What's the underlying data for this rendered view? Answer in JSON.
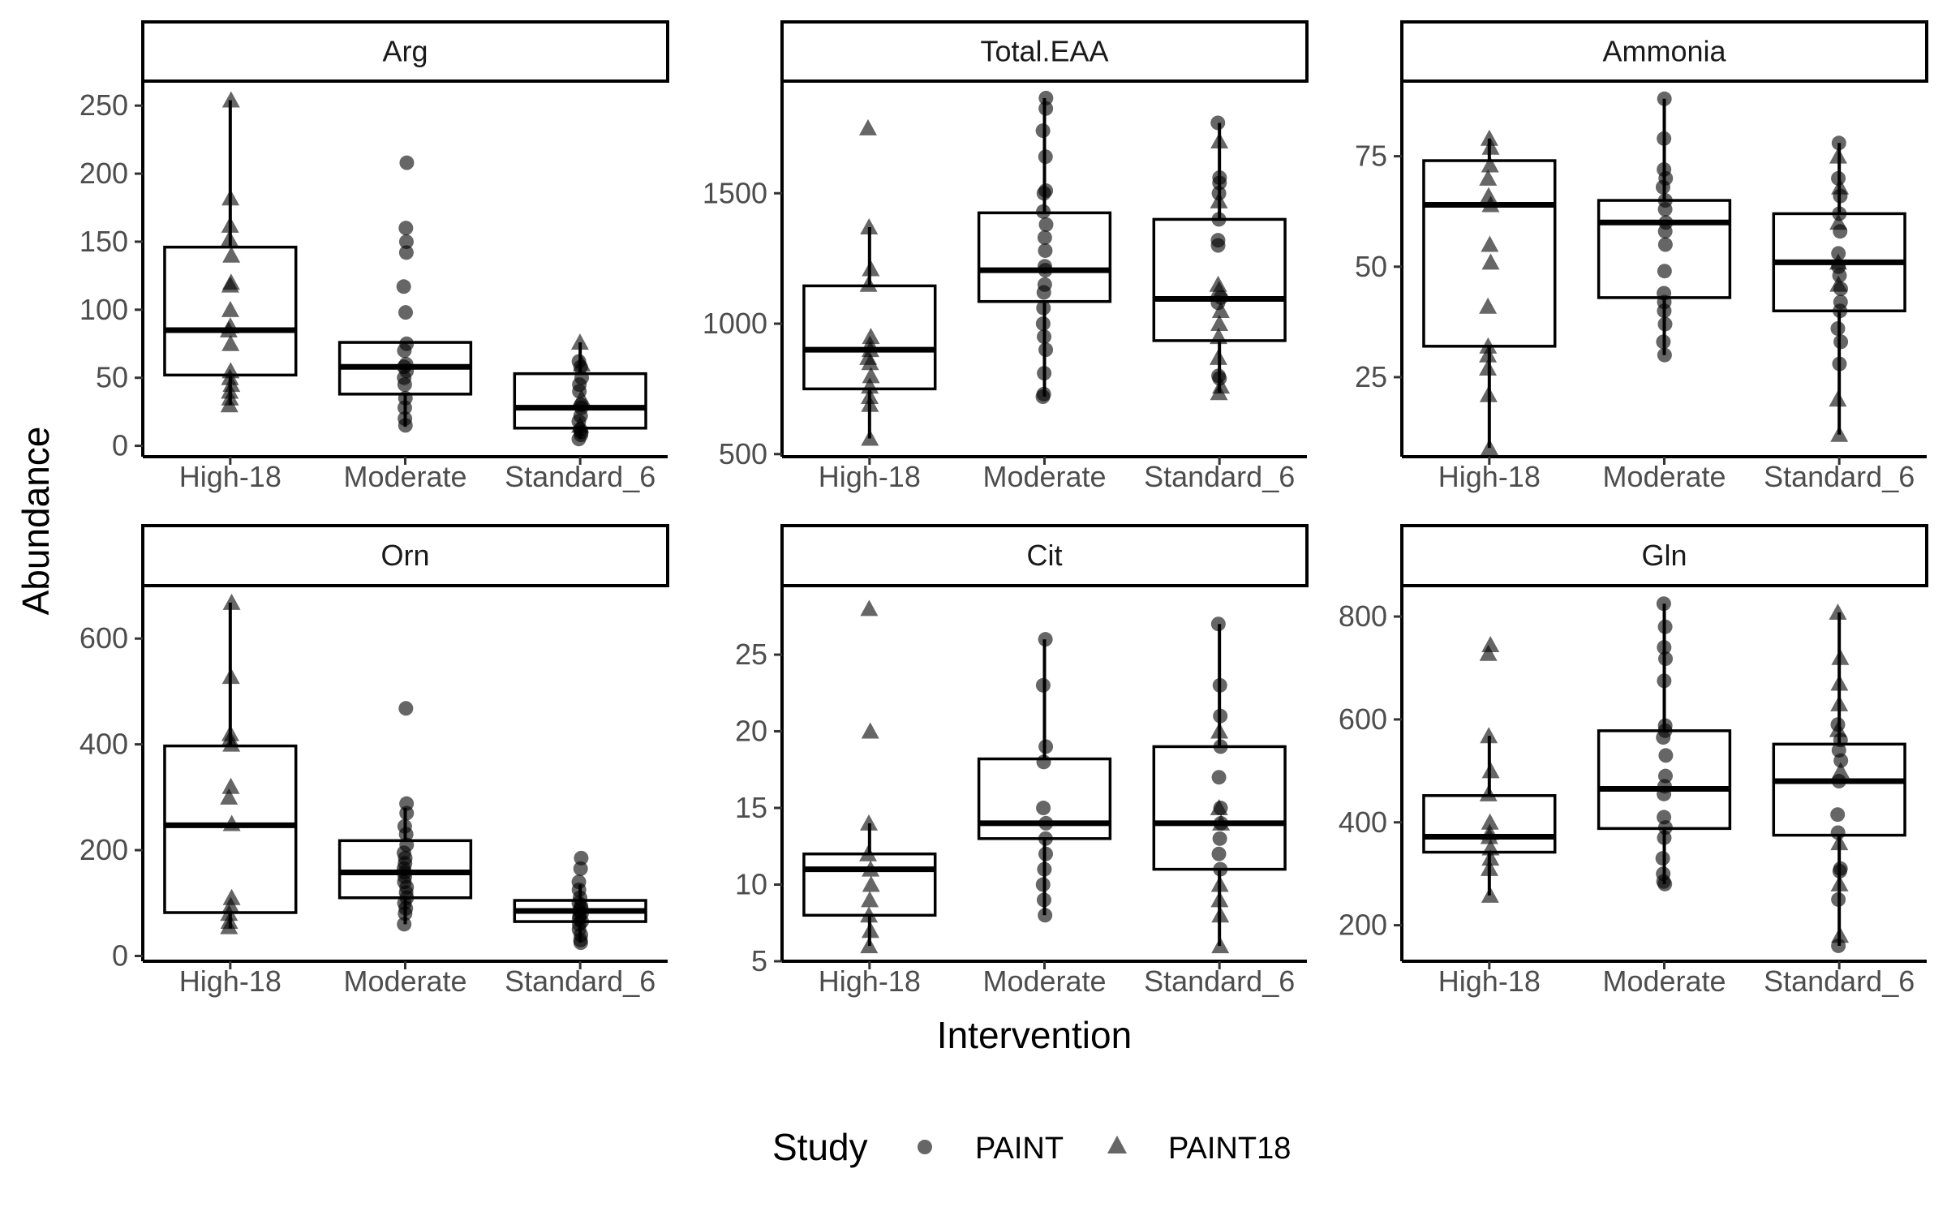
{
  "chart_data": {
    "type": "box",
    "xlabel": "Intervention",
    "ylabel": "Abundance",
    "categories": [
      "High-18",
      "Moderate",
      "Standard_6"
    ],
    "legend": {
      "title": "Study",
      "position": "bottom",
      "entries": [
        {
          "label": "PAINT",
          "shape": "circle"
        },
        {
          "label": "PAINT18",
          "shape": "triangle"
        }
      ]
    },
    "panels": [
      {
        "title": "Arg",
        "ylim": [
          -8,
          268
        ],
        "yticks": [
          0,
          50,
          100,
          150,
          200,
          250
        ],
        "boxes": [
          {
            "category": "High-18",
            "q1": 52,
            "median": 85,
            "q3": 146,
            "whisker_low": 30,
            "whisker_high": 254
          },
          {
            "category": "Moderate",
            "q1": 38,
            "median": 58,
            "q3": 76,
            "whisker_low": 14,
            "whisker_high": 76
          },
          {
            "category": "Standard_6",
            "q1": 13,
            "median": 28,
            "q3": 53,
            "whisker_low": 5,
            "whisker_high": 76
          }
        ],
        "points": [
          {
            "category": "High-18",
            "study": "PAINT18",
            "values": [
              254,
              182,
              162,
              152,
              140,
              120,
              118,
              100,
              88,
              85,
              75,
              55,
              50,
              45,
              40,
              35,
              30
            ]
          },
          {
            "category": "Moderate",
            "study": "PAINT",
            "values": [
              208,
              160,
              150,
              142,
              117,
              98,
              75,
              70,
              60,
              58,
              55,
              50,
              45,
              35,
              28,
              20,
              15
            ]
          },
          {
            "category": "Standard_6",
            "study": "PAINT",
            "values": [
              62,
              58,
              50,
              45,
              40,
              30,
              28,
              22,
              18,
              12,
              10,
              8,
              5
            ]
          },
          {
            "category": "Standard_6",
            "study": "PAINT18",
            "values": [
              76,
              60,
              35,
              15
            ]
          }
        ]
      },
      {
        "title": "Total.EAA",
        "ylim": [
          490,
          1930
        ],
        "yticks": [
          500,
          1000,
          1500
        ],
        "boxes": [
          {
            "category": "High-18",
            "q1": 750,
            "median": 900,
            "q3": 1145,
            "whisker_low": 560,
            "whisker_high": 1370
          },
          {
            "category": "Moderate",
            "q1": 1085,
            "median": 1205,
            "q3": 1425,
            "whisker_low": 720,
            "whisker_high": 1865
          },
          {
            "category": "Standard_6",
            "q1": 935,
            "median": 1095,
            "q3": 1400,
            "whisker_low": 735,
            "whisker_high": 1770
          }
        ],
        "points": [
          {
            "category": "High-18",
            "study": "PAINT18",
            "values": [
              1750,
              1370,
              1210,
              1150,
              950,
              920,
              900,
              870,
              850,
              800,
              760,
              720,
              690,
              560
            ]
          },
          {
            "category": "Moderate",
            "study": "PAINT",
            "values": [
              1865,
              1825,
              1740,
              1640,
              1510,
              1500,
              1430,
              1380,
              1330,
              1280,
              1220,
              1205,
              1150,
              1120,
              1060,
              1000,
              950,
              900,
              810,
              730,
              720
            ]
          },
          {
            "category": "Standard_6",
            "study": "PAINT",
            "values": [
              1770,
              1560,
              1540,
              1500,
              1400,
              1320,
              1300,
              1100,
              1080,
              800,
              790
            ]
          },
          {
            "category": "Standard_6",
            "study": "PAINT18",
            "values": [
              1700,
              1470,
              1150,
              1130,
              1050,
              1000,
              950,
              870,
              760,
              735
            ]
          }
        ]
      },
      {
        "title": "Ammonia",
        "ylim": [
          7,
          92
        ],
        "yticks": [
          25,
          50,
          75
        ],
        "boxes": [
          {
            "category": "High-18",
            "q1": 32,
            "median": 64,
            "q3": 74,
            "whisker_low": 9,
            "whisker_high": 79
          },
          {
            "category": "Moderate",
            "q1": 43,
            "median": 60,
            "q3": 65,
            "whisker_low": 30,
            "whisker_high": 88
          },
          {
            "category": "Standard_6",
            "q1": 40,
            "median": 51,
            "q3": 62,
            "whisker_low": 12,
            "whisker_high": 78
          }
        ],
        "points": [
          {
            "category": "High-18",
            "study": "PAINT18",
            "values": [
              79,
              77,
              73,
              70,
              66,
              64,
              55,
              51,
              41,
              32,
              30,
              27,
              21,
              9
            ]
          },
          {
            "category": "Moderate",
            "study": "PAINT",
            "values": [
              88,
              79,
              72,
              70,
              68,
              65,
              63,
              60,
              58,
              55,
              49,
              44,
              42,
              40,
              37,
              33,
              30
            ]
          },
          {
            "category": "Standard_6",
            "study": "PAINT",
            "values": [
              78,
              70,
              66,
              62,
              58,
              53,
              50,
              48,
              45,
              42,
              40,
              36,
              33,
              28
            ]
          },
          {
            "category": "Standard_6",
            "study": "PAINT18",
            "values": [
              75,
              68,
              60,
              51,
              46,
              20,
              12
            ]
          }
        ]
      },
      {
        "title": "Orn",
        "ylim": [
          -10,
          700
        ],
        "yticks": [
          0,
          200,
          400,
          600
        ],
        "boxes": [
          {
            "category": "High-18",
            "q1": 82,
            "median": 247,
            "q3": 397,
            "whisker_low": 52,
            "whisker_high": 668
          },
          {
            "category": "Moderate",
            "q1": 110,
            "median": 158,
            "q3": 218,
            "whisker_low": 60,
            "whisker_high": 280
          },
          {
            "category": "Standard_6",
            "q1": 65,
            "median": 85,
            "q3": 105,
            "whisker_low": 25,
            "whisker_high": 135
          }
        ],
        "points": [
          {
            "category": "High-18",
            "study": "PAINT18",
            "values": [
              668,
              528,
              420,
              410,
              400,
              320,
              300,
              250,
              110,
              95,
              80,
              65,
              55
            ]
          },
          {
            "category": "Moderate",
            "study": "PAINT",
            "values": [
              468,
              288,
              270,
              245,
              230,
              210,
              195,
              185,
              175,
              165,
              158,
              150,
              140,
              130,
              120,
              110,
              100,
              90,
              80,
              60
            ]
          },
          {
            "category": "Standard_6",
            "study": "PAINT",
            "values": [
              185,
              165,
              140,
              125,
              110,
              100,
              95,
              90,
              85,
              80,
              75,
              70,
              65,
              60,
              50,
              40,
              30,
              25
            ]
          }
        ]
      },
      {
        "title": "Cit",
        "ylim": [
          5,
          29.5
        ],
        "yticks": [
          5,
          10,
          15,
          20,
          25
        ],
        "boxes": [
          {
            "category": "High-18",
            "q1": 8,
            "median": 11,
            "q3": 12,
            "whisker_low": 6,
            "whisker_high": 14
          },
          {
            "category": "Moderate",
            "q1": 13,
            "median": 14,
            "q3": 18.2,
            "whisker_low": 8,
            "whisker_high": 26
          },
          {
            "category": "Standard_6",
            "q1": 11,
            "median": 14,
            "q3": 19,
            "whisker_low": 6,
            "whisker_high": 27
          }
        ],
        "points": [
          {
            "category": "High-18",
            "study": "PAINT18",
            "values": [
              28,
              20,
              14,
              12,
              11,
              10,
              9,
              8,
              7,
              6
            ]
          },
          {
            "category": "Moderate",
            "study": "PAINT",
            "values": [
              26,
              23,
              19,
              18,
              15,
              14,
              13,
              12,
              11,
              10,
              9,
              8
            ]
          },
          {
            "category": "Standard_6",
            "study": "PAINT",
            "values": [
              27,
              23,
              21,
              19,
              17,
              15,
              14,
              13,
              12,
              11
            ]
          },
          {
            "category": "Standard_6",
            "study": "PAINT18",
            "values": [
              20,
              15,
              14,
              10,
              9,
              8,
              6
            ]
          }
        ]
      },
      {
        "title": "Gln",
        "ylim": [
          130,
          860
        ],
        "yticks": [
          200,
          400,
          600,
          800
        ],
        "boxes": [
          {
            "category": "High-18",
            "q1": 342,
            "median": 372,
            "q3": 452,
            "whisker_low": 258,
            "whisker_high": 568
          },
          {
            "category": "Moderate",
            "q1": 388,
            "median": 465,
            "q3": 578,
            "whisker_low": 280,
            "whisker_high": 825
          },
          {
            "category": "Standard_6",
            "q1": 375,
            "median": 480,
            "q3": 552,
            "whisker_low": 160,
            "whisker_high": 808
          }
        ],
        "points": [
          {
            "category": "High-18",
            "study": "PAINT18",
            "values": [
              745,
              728,
              568,
              500,
              455,
              400,
              380,
              372,
              350,
              330,
              310,
              258
            ]
          },
          {
            "category": "Moderate",
            "study": "PAINT",
            "values": [
              825,
              780,
              740,
              718,
              675,
              588,
              578,
              565,
              530,
              490,
              470,
              455,
              410,
              390,
              370,
              330,
              300,
              285,
              280
            ]
          },
          {
            "category": "Standard_6",
            "study": "PAINT",
            "values": [
              590,
              560,
              540,
              520,
              480,
              415,
              380,
              310,
              305,
              250,
              160
            ]
          },
          {
            "category": "Standard_6",
            "study": "PAINT18",
            "values": [
              808,
              720,
              670,
              630,
              580,
              500,
              360,
              280,
              180
            ]
          }
        ]
      }
    ]
  }
}
